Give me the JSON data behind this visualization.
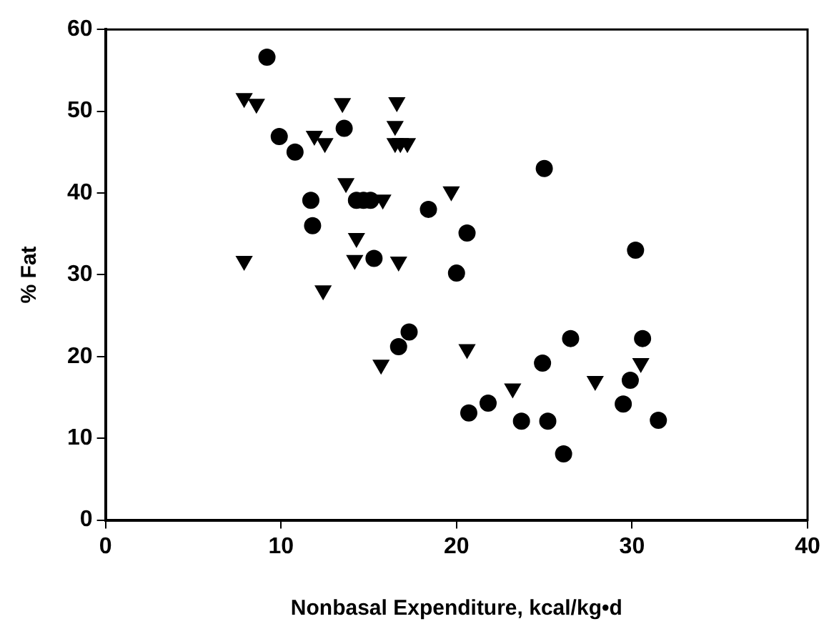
{
  "chart_data": {
    "type": "scatter",
    "xlabel": "Nonbasal Expenditure, kcal/kg•d",
    "ylabel": "% Fat",
    "xlim": [
      0,
      40
    ],
    "xticks": [
      0,
      10,
      20,
      30,
      40
    ],
    "ylim": [
      0,
      60
    ],
    "yticks": [
      0,
      10,
      20,
      30,
      40,
      50,
      60
    ],
    "grid": false,
    "legend": false,
    "series": [
      {
        "color": "#000000",
        "marker": "circle",
        "x": [
          9.2,
          9.9,
          10.8,
          13.6,
          11.7,
          14.3,
          14.7,
          15.1,
          11.8,
          15.3,
          18.4,
          20.6,
          20,
          17.3,
          16.7,
          25,
          30.2,
          20.7,
          21.8,
          23.7,
          24.9,
          25.2,
          26.1,
          26.5,
          29.5,
          29.9,
          30.6,
          31.5
        ],
        "values": [
          56.6,
          46.9,
          45,
          47.9,
          39.1,
          39.1,
          39.1,
          39.1,
          36,
          32,
          38,
          35.1,
          30.2,
          23,
          21.2,
          43,
          33,
          13.1,
          14.3,
          12.1,
          19.2,
          12.1,
          8.1,
          22.2,
          14.2,
          17.1,
          22.2,
          12.2
        ]
      },
      {
        "color": "#000000",
        "marker": "triangle",
        "x": [
          7.9,
          8.6,
          13.5,
          16.6,
          11.9,
          12.5,
          16.5,
          16.5,
          16.8,
          17.2,
          13.7,
          15.8,
          19.7,
          14.3,
          7.9,
          14.2,
          16.7,
          12.4,
          15.7,
          20.6,
          23.2,
          27.9,
          30.5
        ],
        "values": [
          51.6,
          50.9,
          51,
          51.1,
          47,
          46.1,
          48.2,
          46.1,
          46.1,
          46.1,
          41.2,
          39.2,
          40.2,
          34.5,
          31.7,
          31.8,
          31.6,
          28.1,
          19,
          20.9,
          16.1,
          17,
          19.2
        ]
      }
    ]
  }
}
